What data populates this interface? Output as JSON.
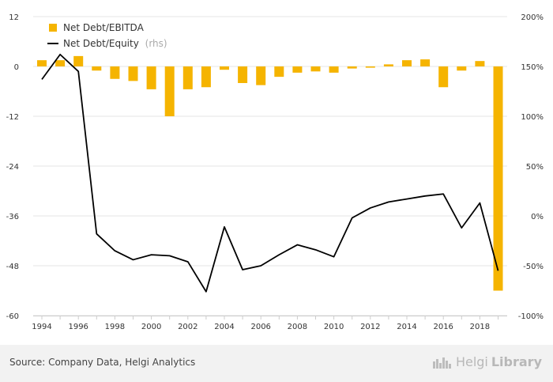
{
  "chart_data": {
    "type": "bar",
    "title": "",
    "x": [
      1994,
      1995,
      1996,
      1997,
      1998,
      1999,
      2000,
      2001,
      2002,
      2003,
      2004,
      2005,
      2006,
      2007,
      2008,
      2009,
      2010,
      2011,
      2012,
      2013,
      2014,
      2015,
      2016,
      2017,
      2018,
      2019
    ],
    "x_tick_labels": [
      "1994",
      "1996",
      "1998",
      "2000",
      "2002",
      "2004",
      "2006",
      "2008",
      "2010",
      "2012",
      "2014",
      "2016",
      "2018"
    ],
    "series": [
      {
        "name": "Net Debt/EBITDA",
        "type": "bar",
        "axis": "left",
        "color": "#f5b400",
        "values": [
          1.5,
          1.5,
          2.5,
          -1.0,
          -3.0,
          -3.5,
          -5.5,
          -12.0,
          -5.5,
          -5.0,
          -0.8,
          -4.0,
          -4.5,
          -2.5,
          -1.5,
          -1.2,
          -1.5,
          -0.5,
          -0.3,
          0.5,
          1.5,
          1.7,
          -5.0,
          -1.0,
          1.3,
          -54.0
        ]
      },
      {
        "name": "Net Debt/Equity",
        "name_suffix": "(rhs)",
        "type": "line",
        "axis": "right",
        "color": "#000000",
        "values": [
          137,
          162,
          145,
          -18,
          -35,
          -44,
          -39,
          -40,
          -46,
          -76,
          -11,
          -54,
          -50,
          -39,
          -29,
          -34,
          -41,
          -2,
          8,
          14,
          17,
          20,
          22,
          -12,
          13,
          -55
        ]
      }
    ],
    "y_left": {
      "ylim": [
        -60,
        12
      ],
      "ticks": [
        "12",
        "0",
        "-12",
        "-24",
        "-36",
        "-48",
        "-60"
      ]
    },
    "y_right": {
      "ylim": [
        -100,
        200
      ],
      "ticks": [
        "200%",
        "150%",
        "100%",
        "50%",
        "0%",
        "-50%",
        "-100%"
      ]
    },
    "grid": true,
    "legend_position": "top-left"
  },
  "footer": {
    "source": "Source: Company Data, Helgi Analytics",
    "brand_part1": "Helgi",
    "brand_part2": "Library"
  },
  "colors": {
    "bar": "#f5b400",
    "line": "#000000",
    "axis_text": "#333333",
    "grid": "#e6e6e6",
    "footer_bg": "#f2f2f2"
  }
}
